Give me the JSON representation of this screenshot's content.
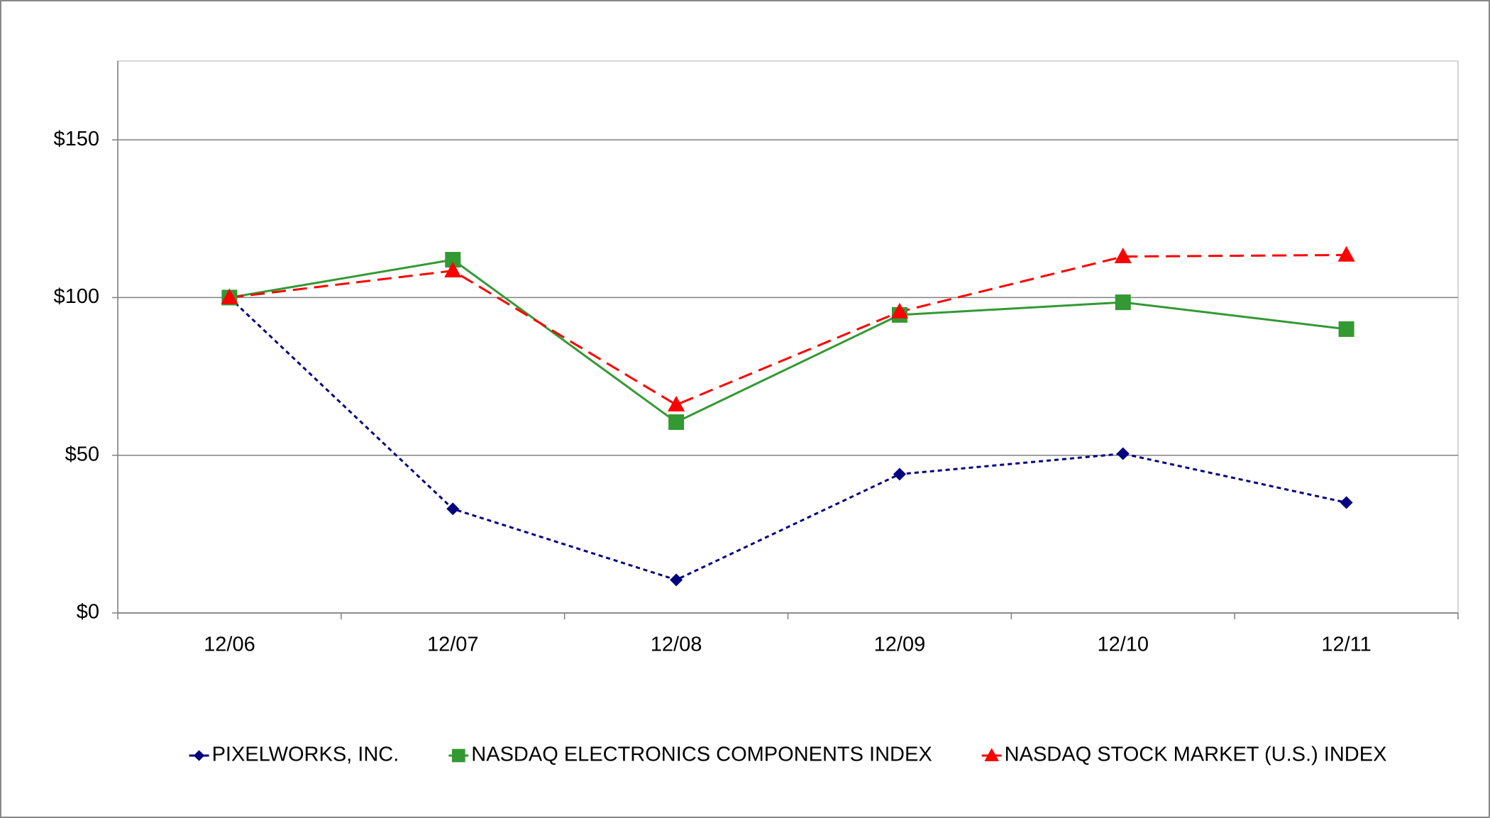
{
  "chart_data": {
    "type": "line",
    "categories": [
      "12/06",
      "12/07",
      "12/08",
      "12/09",
      "12/10",
      "12/11"
    ],
    "series": [
      {
        "name": "PIXELWORKS, INC.",
        "color": "#000080",
        "marker": "diamond",
        "dash": "6,5",
        "values": [
          100,
          33,
          10.5,
          44,
          50.5,
          35
        ]
      },
      {
        "name": "NASDAQ ELECTRONICS COMPONENTS INDEX",
        "color": "#339933",
        "marker": "square",
        "dash": "none",
        "values": [
          100,
          112,
          60.5,
          94.5,
          98.5,
          90
        ]
      },
      {
        "name": "NASDAQ STOCK MARKET (U.S.) INDEX",
        "color": "#ff0000",
        "marker": "triangle",
        "dash": "20,10",
        "values": [
          100,
          108.5,
          66,
          95.5,
          113,
          113.5
        ]
      }
    ],
    "ylim": [
      0,
      175
    ],
    "yticks": [
      {
        "value": 0,
        "label": "$0"
      },
      {
        "value": 50,
        "label": "$50"
      },
      {
        "value": 100,
        "label": "$100"
      },
      {
        "value": 150,
        "label": "$150"
      }
    ],
    "grid": true,
    "legend": "bottom"
  }
}
